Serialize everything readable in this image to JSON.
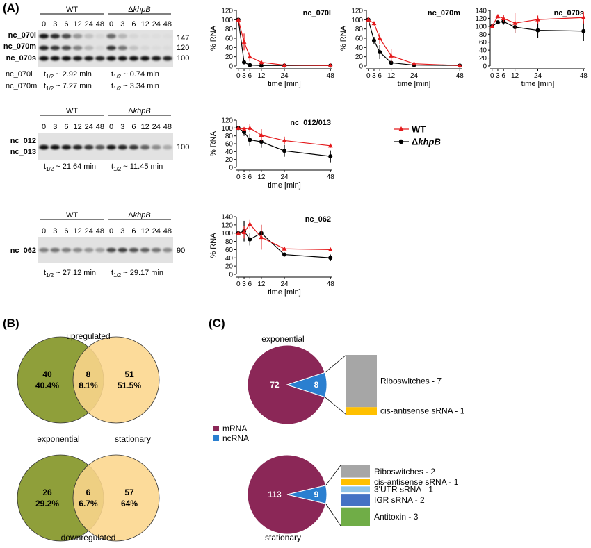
{
  "panelA": {
    "label": "(A)",
    "blots": [
      {
        "id": "b1",
        "groups": [
          {
            "name": "WT",
            "italic": false
          },
          {
            "prefix": "Δ",
            "name": "khpB",
            "italic": true
          }
        ],
        "timepoints": [
          "0",
          "3",
          "6",
          "12",
          "24",
          "48"
        ],
        "bands": [
          {
            "name": "nc_070l",
            "size": "147",
            "intensity": [
              0.95,
              0.85,
              0.7,
              0.35,
              0.15,
              0.05,
              0.55,
              0.2,
              0.05,
              0.02,
              0.02,
              0.02
            ]
          },
          {
            "name": "nc_070m",
            "size": "120",
            "intensity": [
              0.9,
              0.8,
              0.7,
              0.45,
              0.2,
              0.05,
              0.8,
              0.5,
              0.15,
              0.05,
              0.03,
              0.03
            ]
          },
          {
            "name": "nc_070s",
            "size": "100",
            "intensity": [
              1,
              1,
              1,
              0.95,
              0.95,
              0.9,
              1,
              1,
              1,
              1,
              0.95,
              0.9
            ]
          }
        ],
        "halflives": [
          {
            "name": "nc_070l",
            "wt": "~ 2.92 min",
            "mut": "~ 0.74 min"
          },
          {
            "name": "nc_070m",
            "wt": "~ 7.27 min",
            "mut": "~ 3.34 min"
          }
        ]
      },
      {
        "id": "b2",
        "groups": [
          {
            "name": "WT",
            "italic": false
          },
          {
            "prefix": "Δ",
            "name": "khpB",
            "italic": true
          }
        ],
        "timepoints": [
          "0",
          "3",
          "6",
          "12",
          "24",
          "48"
        ],
        "bands": [
          {
            "name": "nc_012",
            "size": "",
            "intensity": []
          },
          {
            "name": "nc_013",
            "size": "100",
            "intensity": [
              1,
              1,
              0.95,
              0.9,
              0.8,
              0.65,
              0.95,
              0.9,
              0.8,
              0.6,
              0.4,
              0.25
            ]
          }
        ],
        "halflives": [
          {
            "name": "",
            "wt": "~ 21.64 min",
            "mut": "~ 11.45 min"
          }
        ]
      },
      {
        "id": "b3",
        "groups": [
          {
            "name": "WT",
            "italic": false
          },
          {
            "prefix": "Δ",
            "name": "khpB",
            "italic": true
          }
        ],
        "timepoints": [
          "0",
          "3",
          "6",
          "12",
          "24",
          "48"
        ],
        "bands": [
          {
            "name": "nc_062",
            "size": "90",
            "intensity": [
              0.45,
              0.5,
              0.45,
              0.4,
              0.35,
              0.3,
              0.7,
              0.75,
              0.65,
              0.6,
              0.5,
              0.4
            ]
          }
        ],
        "halflives": [
          {
            "name": "",
            "wt": "~ 27.12 min",
            "mut": "~ 29.17 min"
          }
        ]
      }
    ],
    "legend": [
      {
        "prefix": "",
        "label": "WT",
        "color": "#e41a1c",
        "marker": "triangle"
      },
      {
        "prefix": "Δ",
        "label": "khpB",
        "color": "#000000",
        "marker": "circle"
      }
    ]
  },
  "chart_data": [
    {
      "type": "line",
      "title": "nc_070l",
      "xlabel": "time [min]",
      "ylabel": "% RNA",
      "x": [
        0,
        3,
        6,
        12,
        24,
        48
      ],
      "xticks": [
        0,
        3,
        6,
        12,
        24,
        48
      ],
      "ylim": [
        0,
        120
      ],
      "yticks": [
        0,
        20,
        40,
        60,
        80,
        100,
        120
      ],
      "series": [
        {
          "name": "WT",
          "color": "#e41a1c",
          "marker": "triangle",
          "values": [
            100,
            52,
            20,
            8,
            2,
            1
          ],
          "err": [
            0,
            18,
            10,
            5,
            2,
            1
          ]
        },
        {
          "name": "khpB",
          "color": "#000000",
          "marker": "circle",
          "values": [
            100,
            8,
            2,
            1,
            1,
            1
          ],
          "err": [
            0,
            3,
            1,
            1,
            1,
            1
          ]
        }
      ]
    },
    {
      "type": "line",
      "title": "nc_070m",
      "xlabel": "time [min]",
      "ylabel": "% RNA",
      "x": [
        0,
        3,
        6,
        12,
        24,
        48
      ],
      "xticks": [
        0,
        3,
        6,
        12,
        24,
        48
      ],
      "ylim": [
        0,
        120
      ],
      "yticks": [
        0,
        20,
        40,
        60,
        80,
        100,
        120
      ],
      "series": [
        {
          "name": "WT",
          "color": "#e41a1c",
          "marker": "triangle",
          "values": [
            100,
            92,
            60,
            22,
            5,
            1
          ],
          "err": [
            0,
            4,
            12,
            14,
            4,
            1
          ]
        },
        {
          "name": "khpB",
          "color": "#000000",
          "marker": "circle",
          "values": [
            100,
            55,
            30,
            7,
            2,
            1
          ],
          "err": [
            0,
            8,
            15,
            4,
            1,
            1
          ]
        }
      ]
    },
    {
      "type": "line",
      "title": "nc_070s",
      "xlabel": "time [min]",
      "ylabel": "",
      "x": [
        0,
        3,
        6,
        12,
        24,
        48
      ],
      "xticks": [
        0,
        3,
        6,
        12,
        24,
        48
      ],
      "ylim": [
        0,
        140
      ],
      "yticks": [
        0,
        20,
        40,
        60,
        80,
        100,
        120,
        140
      ],
      "series": [
        {
          "name": "WT",
          "color": "#e41a1c",
          "marker": "triangle",
          "values": [
            100,
            125,
            120,
            108,
            117,
            122
          ],
          "err": [
            0,
            5,
            8,
            25,
            10,
            15
          ]
        },
        {
          "name": "khpB",
          "color": "#000000",
          "marker": "circle",
          "values": [
            100,
            110,
            112,
            98,
            90,
            88
          ],
          "err": [
            0,
            5,
            8,
            15,
            20,
            25
          ]
        }
      ]
    },
    {
      "type": "line",
      "title": "nc_012/013",
      "xlabel": "time [min]",
      "ylabel": "% RNA",
      "x": [
        0,
        3,
        6,
        12,
        24,
        48
      ],
      "xticks": [
        0,
        3,
        6,
        12,
        24,
        48
      ],
      "ylim": [
        0,
        120
      ],
      "yticks": [
        0,
        20,
        40,
        60,
        80,
        100,
        120
      ],
      "series": [
        {
          "name": "WT",
          "color": "#e41a1c",
          "marker": "triangle",
          "values": [
            100,
            97,
            100,
            82,
            68,
            55
          ],
          "err": [
            0,
            5,
            10,
            15,
            10,
            5
          ]
        },
        {
          "name": "khpB",
          "color": "#000000",
          "marker": "circle",
          "values": [
            100,
            90,
            70,
            65,
            42,
            28
          ],
          "err": [
            0,
            10,
            15,
            15,
            15,
            15
          ]
        }
      ]
    },
    {
      "type": "line",
      "title": "nc_062",
      "xlabel": "time [min]",
      "ylabel": "% RNA",
      "x": [
        0,
        3,
        6,
        12,
        24,
        48
      ],
      "xticks": [
        0,
        3,
        6,
        12,
        24,
        48
      ],
      "ylim": [
        0,
        140
      ],
      "yticks": [
        0,
        20,
        40,
        60,
        80,
        100,
        120,
        140
      ],
      "series": [
        {
          "name": "WT",
          "color": "#e41a1c",
          "marker": "triangle",
          "values": [
            100,
            102,
            122,
            90,
            62,
            60
          ],
          "err": [
            0,
            15,
            10,
            30,
            3,
            3
          ]
        },
        {
          "name": "khpB",
          "color": "#000000",
          "marker": "circle",
          "values": [
            100,
            105,
            85,
            100,
            48,
            40
          ],
          "err": [
            0,
            25,
            15,
            20,
            5,
            8
          ]
        }
      ]
    },
    {
      "type": "pie",
      "title": "exponential",
      "labels": [
        "mRNA",
        "ncRNA"
      ],
      "values": [
        72,
        8
      ],
      "colors": [
        "#8b2757",
        "#2a7fd0"
      ],
      "breakdown": [
        {
          "label": "Riboswitches - 7",
          "value": 7,
          "color": "#a6a6a6"
        },
        {
          "label": "cis-antisense sRNA - 1",
          "value": 1,
          "color": "#ffc000"
        }
      ]
    },
    {
      "type": "pie",
      "title": "stationary",
      "labels": [
        "mRNA",
        "ncRNA"
      ],
      "values": [
        113,
        9
      ],
      "colors": [
        "#8b2757",
        "#2a7fd0"
      ],
      "breakdown": [
        {
          "label": "Riboswitches - 2",
          "value": 2,
          "color": "#a6a6a6"
        },
        {
          "label": "cis-antisense sRNA - 1",
          "value": 1,
          "color": "#ffc000"
        },
        {
          "label": "3'UTR sRNA - 1",
          "value": 1,
          "color": "#8fc4e8"
        },
        {
          "label": "IGR sRNA - 2",
          "value": 2,
          "color": "#4472c4"
        },
        {
          "label": "Antitoxin - 3",
          "value": 3,
          "color": "#70ad47"
        }
      ]
    }
  ],
  "panelB": {
    "label": "(B)",
    "venns": [
      {
        "title": "upregulated",
        "left": {
          "count": "40",
          "pct": "40.4%"
        },
        "mid": {
          "count": "8",
          "pct": "8.1%"
        },
        "right": {
          "count": "51",
          "pct": "51.5%"
        }
      },
      {
        "title": "downregulated",
        "left": {
          "count": "26",
          "pct": "29.2%"
        },
        "mid": {
          "count": "6",
          "pct": "6.7%"
        },
        "right": {
          "count": "57",
          "pct": "64%"
        }
      }
    ],
    "set_labels": [
      "exponential",
      "stationary"
    ],
    "colors": {
      "left": "#8f9f3a",
      "right": "#fcd68c"
    }
  },
  "panelC": {
    "label": "(C)",
    "legend": [
      {
        "label": "mRNA",
        "color": "#8b2757"
      },
      {
        "label": "ncRNA",
        "color": "#2a7fd0"
      }
    ]
  }
}
